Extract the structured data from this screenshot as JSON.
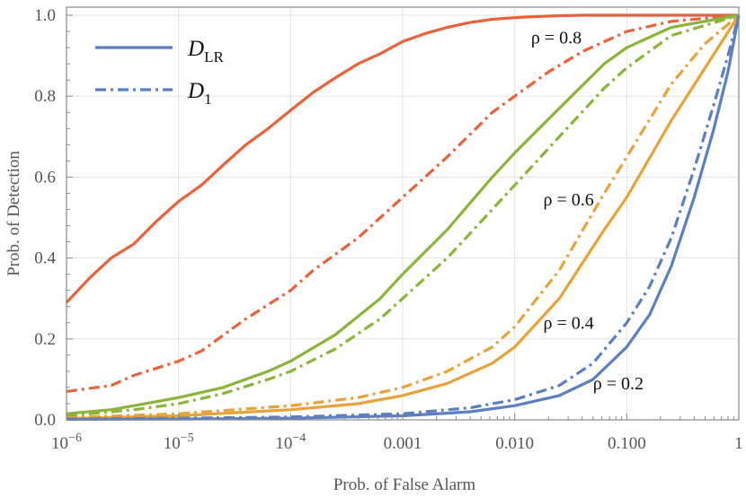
{
  "chart_data": {
    "type": "line",
    "title": "",
    "xlabel": "Prob. of False Alarm",
    "ylabel": "Prob. of Detection",
    "xscale": "log",
    "xlim": [
      1e-06,
      1
    ],
    "ylim": [
      0,
      1.02
    ],
    "grid": true,
    "legend_position": "top-left",
    "x_ticks": [
      {
        "value": 1e-06,
        "label": "10",
        "exp": "−6"
      },
      {
        "value": 1e-05,
        "label": "10",
        "exp": "−5"
      },
      {
        "value": 0.0001,
        "label": "10",
        "exp": "−4"
      },
      {
        "value": 0.001,
        "label": "0.001",
        "exp": ""
      },
      {
        "value": 0.01,
        "label": "0.010",
        "exp": ""
      },
      {
        "value": 0.1,
        "label": "0.100",
        "exp": ""
      },
      {
        "value": 1,
        "label": "1",
        "exp": ""
      }
    ],
    "y_ticks": [
      {
        "value": 0.0,
        "label": "0.0"
      },
      {
        "value": 0.2,
        "label": "0.2"
      },
      {
        "value": 0.4,
        "label": "0.4"
      },
      {
        "value": 0.6,
        "label": "0.6"
      },
      {
        "value": 0.8,
        "label": "0.8"
      },
      {
        "value": 1.0,
        "label": "1.0"
      }
    ],
    "legend": [
      {
        "symbol": "D",
        "sub": "LR",
        "style": "solid"
      },
      {
        "symbol": "D",
        "sub": "1",
        "style": "dashdot"
      }
    ],
    "annotations": [
      {
        "text": "ρ = 0.8",
        "x": 0.014,
        "y": 0.93
      },
      {
        "text": "ρ = 0.6",
        "x": 0.018,
        "y": 0.53
      },
      {
        "text": "ρ = 0.4",
        "x": 0.018,
        "y": 0.225
      },
      {
        "text": "ρ = 0.2",
        "x": 0.05,
        "y": 0.075
      }
    ],
    "series": [
      {
        "name": "ρ = 0.8, D_LR",
        "rho": "0.8",
        "kind": "LR",
        "color": "#e8623a",
        "dash": "solid",
        "x": [
          1e-06,
          1.6e-06,
          2.5e-06,
          4e-06,
          6.3e-06,
          1e-05,
          1.6e-05,
          2.5e-05,
          4e-05,
          6.3e-05,
          0.0001,
          0.00016,
          0.00025,
          0.0004,
          0.00063,
          0.001,
          0.0016,
          0.0025,
          0.004,
          0.0063,
          0.01,
          0.016,
          0.025,
          0.04,
          0.063,
          0.1,
          0.3,
          1
        ],
        "y": [
          0.29,
          0.35,
          0.4,
          0.435,
          0.49,
          0.54,
          0.58,
          0.63,
          0.68,
          0.72,
          0.765,
          0.81,
          0.845,
          0.88,
          0.905,
          0.935,
          0.955,
          0.97,
          0.982,
          0.99,
          0.994,
          0.997,
          0.999,
          1.0,
          1.0,
          1.0,
          1.0,
          1.0
        ]
      },
      {
        "name": "ρ = 0.8, D_1",
        "rho": "0.8",
        "kind": "1",
        "color": "#e8623a",
        "dash": "dashdot",
        "x": [
          1e-06,
          2.5e-06,
          4e-06,
          1e-05,
          1.6e-05,
          4e-05,
          0.0001,
          0.00016,
          0.0004,
          0.001,
          0.0025,
          0.0063,
          0.01,
          0.02,
          0.04,
          0.1,
          0.25,
          1
        ],
        "y": [
          0.07,
          0.085,
          0.11,
          0.145,
          0.17,
          0.25,
          0.32,
          0.37,
          0.45,
          0.55,
          0.65,
          0.76,
          0.8,
          0.86,
          0.91,
          0.96,
          0.985,
          1.0
        ]
      },
      {
        "name": "ρ = 0.6, D_LR",
        "rho": "0.6",
        "kind": "LR",
        "color": "#8ab43a",
        "dash": "solid",
        "x": [
          1e-06,
          2.5e-06,
          4e-06,
          1e-05,
          2.5e-05,
          6.3e-05,
          0.0001,
          0.00025,
          0.00063,
          0.001,
          0.0025,
          0.0063,
          0.01,
          0.025,
          0.063,
          0.1,
          0.25,
          1
        ],
        "y": [
          0.015,
          0.025,
          0.035,
          0.055,
          0.08,
          0.12,
          0.145,
          0.21,
          0.3,
          0.36,
          0.47,
          0.6,
          0.66,
          0.77,
          0.88,
          0.92,
          0.97,
          1.0
        ]
      },
      {
        "name": "ρ = 0.6, D_1",
        "rho": "0.6",
        "kind": "1",
        "color": "#8ab43a",
        "dash": "dashdot",
        "x": [
          1e-06,
          4e-06,
          1e-05,
          2.5e-05,
          6.3e-05,
          0.0001,
          0.00025,
          0.00063,
          0.001,
          0.0025,
          0.0063,
          0.01,
          0.025,
          0.063,
          0.1,
          0.25,
          1
        ],
        "y": [
          0.01,
          0.025,
          0.04,
          0.065,
          0.1,
          0.12,
          0.175,
          0.25,
          0.3,
          0.4,
          0.52,
          0.58,
          0.7,
          0.82,
          0.87,
          0.95,
          1.0
        ]
      },
      {
        "name": "ρ = 0.4, D_LR",
        "rho": "0.4",
        "kind": "LR",
        "color": "#e8a23a",
        "dash": "solid",
        "x": [
          1e-06,
          1e-05,
          0.0001,
          0.0004,
          0.001,
          0.0025,
          0.0063,
          0.01,
          0.025,
          0.063,
          0.1,
          0.25,
          0.5,
          1
        ],
        "y": [
          0.003,
          0.01,
          0.025,
          0.04,
          0.06,
          0.09,
          0.14,
          0.18,
          0.3,
          0.47,
          0.55,
          0.74,
          0.87,
          1.0
        ]
      },
      {
        "name": "ρ = 0.4, D_1",
        "rho": "0.4",
        "kind": "1",
        "color": "#e8a23a",
        "dash": "dashdot",
        "x": [
          1e-06,
          1e-05,
          0.0001,
          0.0004,
          0.001,
          0.0025,
          0.0063,
          0.01,
          0.025,
          0.063,
          0.1,
          0.25,
          0.5,
          1
        ],
        "y": [
          0.005,
          0.015,
          0.035,
          0.055,
          0.08,
          0.12,
          0.18,
          0.23,
          0.37,
          0.56,
          0.65,
          0.83,
          0.93,
          1.0
        ]
      },
      {
        "name": "ρ = 0.2, D_LR",
        "rho": "0.2",
        "kind": "LR",
        "color": "#5b7fc0",
        "dash": "solid",
        "x": [
          1e-06,
          1e-05,
          0.0001,
          0.001,
          0.004,
          0.01,
          0.025,
          0.05,
          0.1,
          0.16,
          0.25,
          0.4,
          0.6,
          0.8,
          1
        ],
        "y": [
          0.001,
          0.002,
          0.004,
          0.01,
          0.02,
          0.035,
          0.06,
          0.1,
          0.18,
          0.26,
          0.38,
          0.55,
          0.72,
          0.86,
          1.0
        ]
      },
      {
        "name": "ρ = 0.2, D_1",
        "rho": "0.2",
        "kind": "1",
        "color": "#5b7fc0",
        "dash": "dashdot",
        "x": [
          1e-06,
          1e-05,
          0.0001,
          0.001,
          0.004,
          0.01,
          0.025,
          0.05,
          0.1,
          0.16,
          0.25,
          0.4,
          0.6,
          0.8,
          1
        ],
        "y": [
          0.002,
          0.004,
          0.007,
          0.015,
          0.03,
          0.05,
          0.085,
          0.14,
          0.24,
          0.33,
          0.45,
          0.62,
          0.78,
          0.9,
          1.0
        ]
      }
    ]
  }
}
